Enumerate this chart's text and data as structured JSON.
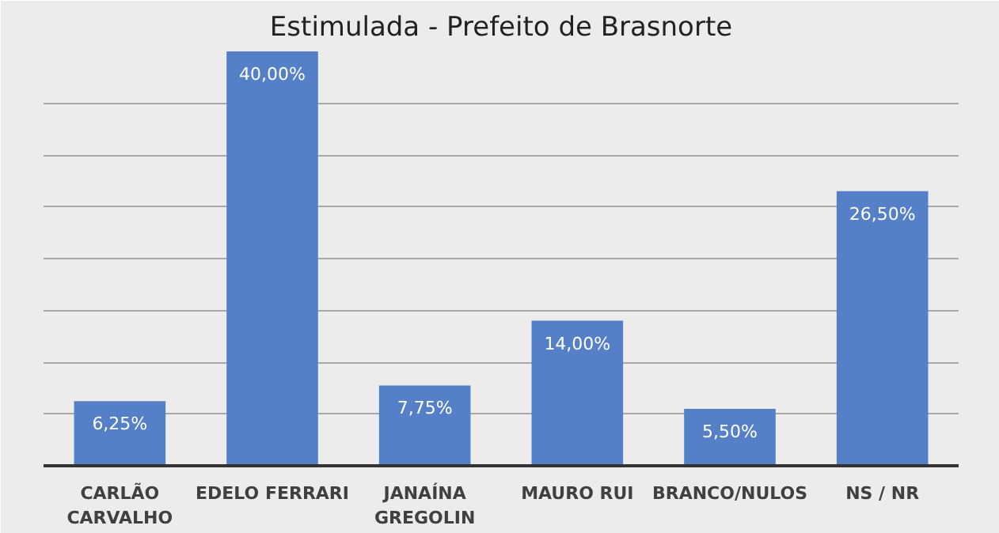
{
  "chart_data": {
    "type": "bar",
    "title": "Estimulada - Prefeito de Brasnorte",
    "categories": [
      "CARLÃO\nCARVALHO",
      "EDELO FERRARI",
      "JANAÍNA\nGREGOLIN",
      "MAURO RUI",
      "BRANCO/NULOS",
      "NS / NR"
    ],
    "values": [
      6.25,
      40,
      7.75,
      14,
      5.5,
      26.5
    ],
    "value_labels": [
      "6,25%",
      "40,00%",
      "7,75%",
      "14,00%",
      "5,50%",
      "26,50%"
    ],
    "color": "#5580c8",
    "ylim": [
      0,
      40
    ],
    "yticks": [
      {
        "value": 5,
        "label": null
      },
      {
        "value": 10,
        "label": null
      },
      {
        "value": 15,
        "label": null
      },
      {
        "value": 20,
        "label": null
      },
      {
        "value": 25,
        "label": null
      },
      {
        "value": 30,
        "label": null
      },
      {
        "value": 35,
        "label": null
      },
      {
        "value": 40,
        "label": null
      }
    ],
    "grid": "y",
    "tick_labels": "x"
  }
}
